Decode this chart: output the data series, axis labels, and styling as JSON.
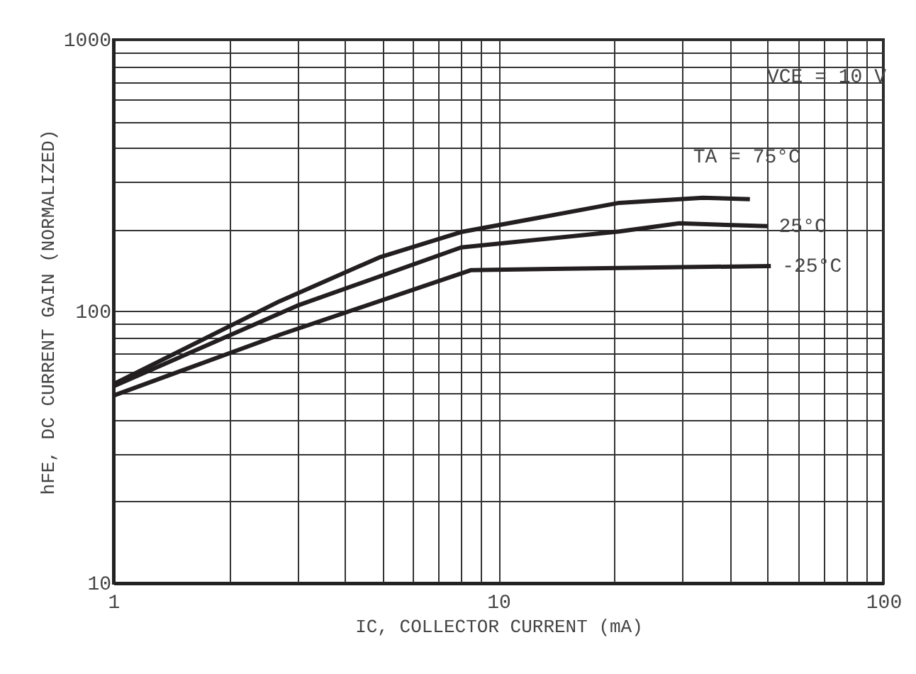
{
  "chart_data": {
    "type": "line",
    "xlabel": "IC, COLLECTOR CURRENT (mA)",
    "ylabel": "hFE, DC CURRENT GAIN (NORMALIZED)",
    "log": "xy",
    "grid": true,
    "legend": false,
    "marker": "none",
    "line_style": "solid",
    "xlim": [
      1,
      100
    ],
    "ylim": [
      10,
      1000
    ],
    "xticks": [
      1,
      {
        "value": 2,
        "label": null
      },
      {
        "value": 3,
        "label": null
      },
      {
        "value": 4,
        "label": null
      },
      {
        "value": 5,
        "label": null
      },
      {
        "value": 6,
        "label": null
      },
      {
        "value": 7,
        "label": null
      },
      {
        "value": 8,
        "label": null
      },
      {
        "value": 9,
        "label": null
      },
      10,
      {
        "value": 20,
        "label": null
      },
      {
        "value": 30,
        "label": null
      },
      {
        "value": 40,
        "label": null
      },
      {
        "value": 50,
        "label": null
      },
      {
        "value": 60,
        "label": null
      },
      {
        "value": 70,
        "label": null
      },
      {
        "value": 80,
        "label": null
      },
      {
        "value": 90,
        "label": null
      },
      100
    ],
    "yticks": [
      10,
      {
        "value": 20,
        "label": null
      },
      {
        "value": 30,
        "label": null
      },
      {
        "value": 40,
        "label": null
      },
      {
        "value": 50,
        "label": null
      },
      {
        "value": 60,
        "label": null
      },
      {
        "value": 70,
        "label": null
      },
      {
        "value": 80,
        "label": null
      },
      {
        "value": 90,
        "label": null
      },
      100,
      {
        "value": 200,
        "label": null
      },
      {
        "value": 300,
        "label": null
      },
      {
        "value": 400,
        "label": null
      },
      {
        "value": 500,
        "label": null
      },
      {
        "value": 600,
        "label": null
      },
      {
        "value": 700,
        "label": null
      },
      {
        "value": 800,
        "label": null
      },
      {
        "value": 900,
        "label": null
      },
      1000
    ],
    "annotations": [
      "VCE = 10 V"
    ],
    "series": [
      {
        "name": "TA = 75°C",
        "color": "#231f20",
        "x": [
          1,
          2.7,
          4.9,
          8,
          20.6,
          34,
          45
        ],
        "values": [
          54,
          109,
          158,
          196,
          251,
          262,
          259
        ]
      },
      {
        "name": "25°C",
        "color": "#231f20",
        "x": [
          1,
          3,
          8,
          20.6,
          29.5,
          50
        ],
        "values": [
          53,
          105,
          172,
          197,
          211,
          206
        ]
      },
      {
        "name": "-25°C",
        "color": "#231f20",
        "x": [
          1,
          2.7,
          8.5,
          51
        ],
        "values": [
          49,
          82,
          142,
          147
        ]
      }
    ]
  }
}
